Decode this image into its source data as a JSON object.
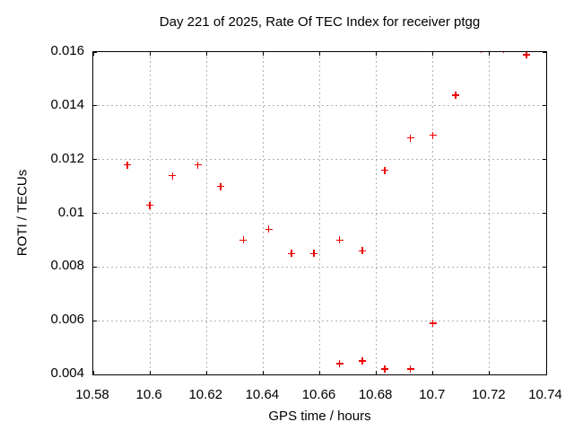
{
  "chart_data": {
    "type": "scatter",
    "title": "Day 221 of 2025, Rate Of TEC Index for receiver ptgg",
    "xlabel": "GPS time / hours",
    "ylabel": "ROTI / TECUs",
    "xlim": [
      10.58,
      10.74
    ],
    "ylim": [
      0.004,
      0.016
    ],
    "xticks": [
      {
        "value": 10.58,
        "label": "10.58"
      },
      {
        "value": 10.6,
        "label": "10.6"
      },
      {
        "value": 10.62,
        "label": "10.62"
      },
      {
        "value": 10.64,
        "label": "10.64"
      },
      {
        "value": 10.66,
        "label": "10.66"
      },
      {
        "value": 10.68,
        "label": "10.68"
      },
      {
        "value": 10.7,
        "label": "10.7"
      },
      {
        "value": 10.72,
        "label": "10.72"
      },
      {
        "value": 10.74,
        "label": "10.74"
      }
    ],
    "yticks": [
      {
        "value": 0.004,
        "label": "0.004"
      },
      {
        "value": 0.006,
        "label": "0.006"
      },
      {
        "value": 0.008,
        "label": "0.008"
      },
      {
        "value": 0.01,
        "label": "0.01"
      },
      {
        "value": 0.012,
        "label": "0.012"
      },
      {
        "value": 0.014,
        "label": "0.014"
      },
      {
        "value": 0.016,
        "label": "0.016"
      }
    ],
    "grid": true,
    "grid_style": "dashed",
    "legend": "none",
    "marker": "plus",
    "marker_color": "#ee0000",
    "grid_color": "#b0b0b0",
    "frame_color": "#000000",
    "background_color": "#ffffff",
    "series": [
      {
        "name": "ROTI",
        "points": [
          [
            10.592,
            0.0118
          ],
          [
            10.6,
            0.0103
          ],
          [
            10.608,
            0.0114
          ],
          [
            10.617,
            0.0118
          ],
          [
            10.625,
            0.011
          ],
          [
            10.633,
            0.009
          ],
          [
            10.642,
            0.0094
          ],
          [
            10.65,
            0.0085
          ],
          [
            10.658,
            0.0085
          ],
          [
            10.667,
            0.009
          ],
          [
            10.675,
            0.0086
          ],
          [
            10.683,
            0.0116
          ],
          [
            10.692,
            0.0128
          ],
          [
            10.7,
            0.0129
          ],
          [
            10.708,
            0.0144
          ],
          [
            10.717,
            0.0161
          ],
          [
            10.725,
            0.0161
          ],
          [
            10.733,
            0.0159
          ],
          [
            10.667,
            0.0044
          ],
          [
            10.675,
            0.0045
          ],
          [
            10.683,
            0.0042
          ],
          [
            10.692,
            0.0042
          ],
          [
            10.7,
            0.0059
          ]
        ]
      }
    ]
  }
}
